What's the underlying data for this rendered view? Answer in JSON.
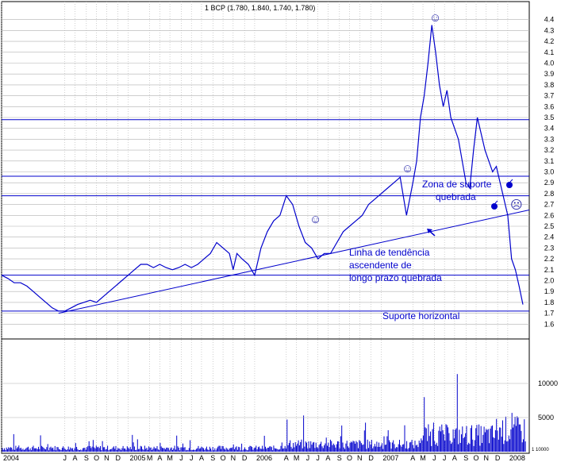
{
  "colors": {
    "series": "#0000cc",
    "lines": "#0000cc",
    "grid": "#b0b0b0",
    "frame": "#000000"
  },
  "title": "1 BCP (1.780, 1.840, 1.740, 1.780)",
  "annotations": {
    "support_zone_1": "Zona de suporte",
    "support_zone_2": "quebrada",
    "trend_1": "Linha de tendência",
    "trend_2": "ascendente de",
    "trend_3": "longo prazo quebrada",
    "horizontal_support": "Suporte horizontal"
  },
  "volume_tick_label": "1 10000",
  "chart_data": {
    "type": "line",
    "title": "1 BCP (1.780, 1.840, 1.740, 1.780)",
    "xlabel": "",
    "ylabel": "",
    "ylim": [
      1.5,
      4.5
    ],
    "y_ticks": [
      1.6,
      1.7,
      1.8,
      1.9,
      2.0,
      2.1,
      2.2,
      2.3,
      2.4,
      2.5,
      2.6,
      2.7,
      2.8,
      2.9,
      3.0,
      3.1,
      3.2,
      3.3,
      3.4,
      3.5,
      3.6,
      3.7,
      3.8,
      3.9,
      4.0,
      4.1,
      4.2,
      4.3,
      4.4
    ],
    "x_range": [
      2004.0,
      2008.17
    ],
    "x_ticks": [
      {
        "x": 2004.0,
        "label": "2004"
      },
      {
        "x": 2004.5,
        "label": "J"
      },
      {
        "x": 2004.58,
        "label": "A"
      },
      {
        "x": 2004.67,
        "label": "S"
      },
      {
        "x": 2004.75,
        "label": "O"
      },
      {
        "x": 2004.83,
        "label": "N"
      },
      {
        "x": 2004.92,
        "label": "D"
      },
      {
        "x": 2005.0,
        "label": "2005"
      },
      {
        "x": 2005.17,
        "label": "M"
      },
      {
        "x": 2005.25,
        "label": "A"
      },
      {
        "x": 2005.33,
        "label": "M"
      },
      {
        "x": 2005.42,
        "label": "J"
      },
      {
        "x": 2005.5,
        "label": "J"
      },
      {
        "x": 2005.58,
        "label": "A"
      },
      {
        "x": 2005.67,
        "label": "S"
      },
      {
        "x": 2005.75,
        "label": "O"
      },
      {
        "x": 2005.83,
        "label": "N"
      },
      {
        "x": 2005.92,
        "label": "D"
      },
      {
        "x": 2006.0,
        "label": "2006"
      },
      {
        "x": 2006.25,
        "label": "A"
      },
      {
        "x": 2006.33,
        "label": "M"
      },
      {
        "x": 2006.42,
        "label": "J"
      },
      {
        "x": 2006.5,
        "label": "J"
      },
      {
        "x": 2006.58,
        "label": "A"
      },
      {
        "x": 2006.67,
        "label": "S"
      },
      {
        "x": 2006.75,
        "label": "O"
      },
      {
        "x": 2006.83,
        "label": "N"
      },
      {
        "x": 2006.92,
        "label": "D"
      },
      {
        "x": 2007.0,
        "label": "2007"
      },
      {
        "x": 2007.25,
        "label": "A"
      },
      {
        "x": 2007.33,
        "label": "M"
      },
      {
        "x": 2007.42,
        "label": "J"
      },
      {
        "x": 2007.5,
        "label": "J"
      },
      {
        "x": 2007.58,
        "label": "A"
      },
      {
        "x": 2007.67,
        "label": "S"
      },
      {
        "x": 2007.75,
        "label": "O"
      },
      {
        "x": 2007.83,
        "label": "N"
      },
      {
        "x": 2007.92,
        "label": "D"
      },
      {
        "x": 2008.0,
        "label": "2008"
      }
    ],
    "series": [
      {
        "x": [
          2004.0,
          2004.05,
          2004.1,
          2004.15,
          2004.2,
          2004.25,
          2004.3,
          2004.35,
          2004.4,
          2004.45,
          2004.5,
          2004.55,
          2004.6,
          2004.65,
          2004.7,
          2004.75,
          2004.8,
          2004.85,
          2004.9,
          2004.95,
          2005.0,
          2005.05,
          2005.1,
          2005.15,
          2005.2,
          2005.25,
          2005.3,
          2005.35,
          2005.4,
          2005.45,
          2005.5,
          2005.55,
          2005.6,
          2005.65,
          2005.7,
          2005.75,
          2005.8,
          2005.83,
          2005.86,
          2005.9,
          2005.95,
          2006.0,
          2006.05,
          2006.1,
          2006.15,
          2006.2,
          2006.25,
          2006.3,
          2006.35,
          2006.4,
          2006.45,
          2006.5,
          2006.55,
          2006.6,
          2006.65,
          2006.7,
          2006.75,
          2006.8,
          2006.85,
          2006.9,
          2006.95,
          2007.0,
          2007.05,
          2007.1,
          2007.15,
          2007.2,
          2007.25,
          2007.28,
          2007.31,
          2007.34,
          2007.37,
          2007.4,
          2007.43,
          2007.46,
          2007.49,
          2007.52,
          2007.55,
          2007.58,
          2007.61,
          2007.64,
          2007.67,
          2007.7,
          2007.73,
          2007.76,
          2007.79,
          2007.82,
          2007.85,
          2007.88,
          2007.91,
          2007.94,
          2007.97,
          2008.0,
          2008.03,
          2008.06,
          2008.09,
          2008.12
        ],
        "y": [
          2.05,
          2.02,
          1.98,
          1.98,
          1.95,
          1.9,
          1.85,
          1.8,
          1.75,
          1.72,
          1.72,
          1.75,
          1.78,
          1.8,
          1.82,
          1.8,
          1.85,
          1.9,
          1.95,
          2.0,
          2.05,
          2.1,
          2.15,
          2.15,
          2.12,
          2.15,
          2.12,
          2.1,
          2.12,
          2.15,
          2.12,
          2.15,
          2.2,
          2.25,
          2.35,
          2.3,
          2.25,
          2.1,
          2.25,
          2.2,
          2.15,
          2.05,
          2.3,
          2.45,
          2.55,
          2.6,
          2.78,
          2.7,
          2.5,
          2.35,
          2.3,
          2.2,
          2.25,
          2.25,
          2.35,
          2.45,
          2.5,
          2.55,
          2.6,
          2.7,
          2.75,
          2.8,
          2.85,
          2.9,
          2.95,
          2.6,
          2.9,
          3.1,
          3.5,
          3.7,
          4.0,
          4.35,
          4.1,
          3.8,
          3.6,
          3.75,
          3.5,
          3.4,
          3.3,
          3.1,
          2.9,
          2.85,
          3.2,
          3.5,
          3.35,
          3.2,
          3.1,
          3.0,
          3.05,
          2.9,
          2.75,
          2.6,
          2.2,
          2.1,
          1.95,
          1.78
        ]
      }
    ],
    "horizontal_lines": [
      3.48,
      2.96,
      2.78,
      2.05,
      1.72
    ],
    "trendline": {
      "x1": 2004.45,
      "y1": 1.7,
      "x2": 2008.12,
      "y2": 2.65
    },
    "volume": {
      "ticks": [
        5000,
        10000
      ]
    }
  }
}
